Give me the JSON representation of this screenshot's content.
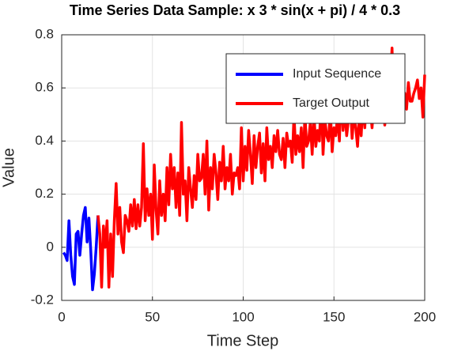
{
  "chart_data": {
    "type": "line",
    "title": "Time Series Data Sample: x  3 * sin(x + pi) / 4 * 0.3",
    "xlabel": "Time Step",
    "ylabel": "Value",
    "xlim": [
      0,
      200
    ],
    "xticks": [
      0,
      50,
      100,
      150,
      200
    ],
    "ylim": [
      -0.2,
      0.8
    ],
    "yticks": [
      -0.2,
      0,
      0.2,
      0.4,
      0.6,
      0.8
    ],
    "grid": true,
    "legend": "upper right",
    "series": [
      {
        "name": "Input Sequence",
        "color": "#0000ff",
        "x": [
          1,
          2,
          3,
          4,
          5,
          6,
          7,
          8,
          9,
          10,
          11,
          12,
          13,
          14,
          15,
          16,
          17,
          18,
          19,
          20
        ],
        "values": [
          -0.02,
          -0.03,
          -0.05,
          0.1,
          -0.03,
          -0.11,
          -0.14,
          0.05,
          0.06,
          -0.03,
          0.05,
          0.12,
          0.15,
          0.02,
          0.11,
          -0.01,
          -0.16,
          -0.1,
          0.0,
          0.12
        ]
      },
      {
        "name": "Target Output",
        "color": "#ff0000",
        "x": [
          20,
          21,
          22,
          23,
          24,
          25,
          26,
          27,
          28,
          29,
          30,
          31,
          32,
          33,
          34,
          35,
          36,
          37,
          38,
          39,
          40,
          41,
          42,
          43,
          44,
          45,
          46,
          47,
          48,
          49,
          50,
          51,
          52,
          53,
          54,
          55,
          56,
          57,
          58,
          59,
          60,
          61,
          62,
          63,
          64,
          65,
          66,
          67,
          68,
          69,
          70,
          71,
          72,
          73,
          74,
          75,
          76,
          77,
          78,
          79,
          80,
          81,
          82,
          83,
          84,
          85,
          86,
          87,
          88,
          89,
          90,
          91,
          92,
          93,
          94,
          95,
          96,
          97,
          98,
          99,
          100,
          101,
          102,
          103,
          104,
          105,
          106,
          107,
          108,
          109,
          110,
          111,
          112,
          113,
          114,
          115,
          116,
          117,
          118,
          119,
          120,
          121,
          122,
          123,
          124,
          125,
          126,
          127,
          128,
          129,
          130,
          131,
          132,
          133,
          134,
          135,
          136,
          137,
          138,
          139,
          140,
          141,
          142,
          143,
          144,
          145,
          146,
          147,
          148,
          149,
          150,
          151,
          152,
          153,
          154,
          155,
          156,
          157,
          158,
          159,
          160,
          161,
          162,
          163,
          164,
          165,
          166,
          167,
          168,
          169,
          170,
          171,
          172,
          173,
          174,
          175,
          176,
          177,
          178,
          179,
          180,
          181,
          182,
          183,
          184,
          185,
          186,
          187,
          188,
          189,
          190,
          191,
          192,
          193,
          194,
          195,
          196,
          197,
          198,
          199,
          200
        ],
        "values": [
          0.12,
          0.05,
          -0.15,
          0.08,
          0.0,
          0.1,
          -0.15,
          0.05,
          -0.11,
          0.1,
          0.24,
          0.05,
          0.15,
          0.02,
          -0.02,
          0.12,
          0.1,
          0.06,
          0.16,
          0.08,
          0.18,
          0.07,
          0.16,
          0.08,
          0.15,
          0.39,
          0.1,
          0.22,
          0.12,
          0.2,
          0.03,
          0.31,
          0.14,
          0.05,
          0.25,
          0.12,
          0.2,
          0.1,
          0.3,
          0.16,
          0.35,
          0.22,
          0.3,
          0.15,
          0.28,
          0.12,
          0.47,
          0.2,
          0.25,
          0.1,
          0.3,
          0.22,
          0.15,
          0.27,
          0.18,
          0.35,
          0.25,
          0.26,
          0.35,
          0.2,
          0.4,
          0.14,
          0.3,
          0.22,
          0.35,
          0.28,
          0.18,
          0.32,
          0.25,
          0.38,
          0.22,
          0.3,
          0.25,
          0.35,
          0.2,
          0.28,
          0.27,
          0.3,
          0.22,
          0.45,
          0.25,
          0.38,
          0.29,
          0.44,
          0.35,
          0.24,
          0.42,
          0.3,
          0.38,
          0.43,
          0.28,
          0.39,
          0.25,
          0.45,
          0.33,
          0.38,
          0.3,
          0.42,
          0.36,
          0.44,
          0.35,
          0.33,
          0.41,
          0.3,
          0.43,
          0.38,
          0.4,
          0.32,
          0.5,
          0.35,
          0.42,
          0.36,
          0.45,
          0.3,
          0.5,
          0.38,
          0.4,
          0.47,
          0.35,
          0.5,
          0.38,
          0.44,
          0.4,
          0.58,
          0.35,
          0.48,
          0.42,
          0.4,
          0.52,
          0.36,
          0.45,
          0.42,
          0.5,
          0.4,
          0.6,
          0.44,
          0.52,
          0.42,
          0.48,
          0.55,
          0.41,
          0.5,
          0.45,
          0.38,
          0.5,
          0.42,
          0.55,
          0.45,
          0.6,
          0.48,
          0.52,
          0.45,
          0.55,
          0.5,
          0.62,
          0.48,
          0.53,
          0.58,
          0.46,
          0.55,
          0.5,
          0.6,
          0.75,
          0.52,
          0.6,
          0.48,
          0.62,
          0.55,
          0.5,
          0.58,
          0.52,
          0.62,
          0.55,
          0.55,
          0.58,
          0.6,
          0.63,
          0.56,
          0.6,
          0.49,
          0.65
        ]
      }
    ]
  }
}
